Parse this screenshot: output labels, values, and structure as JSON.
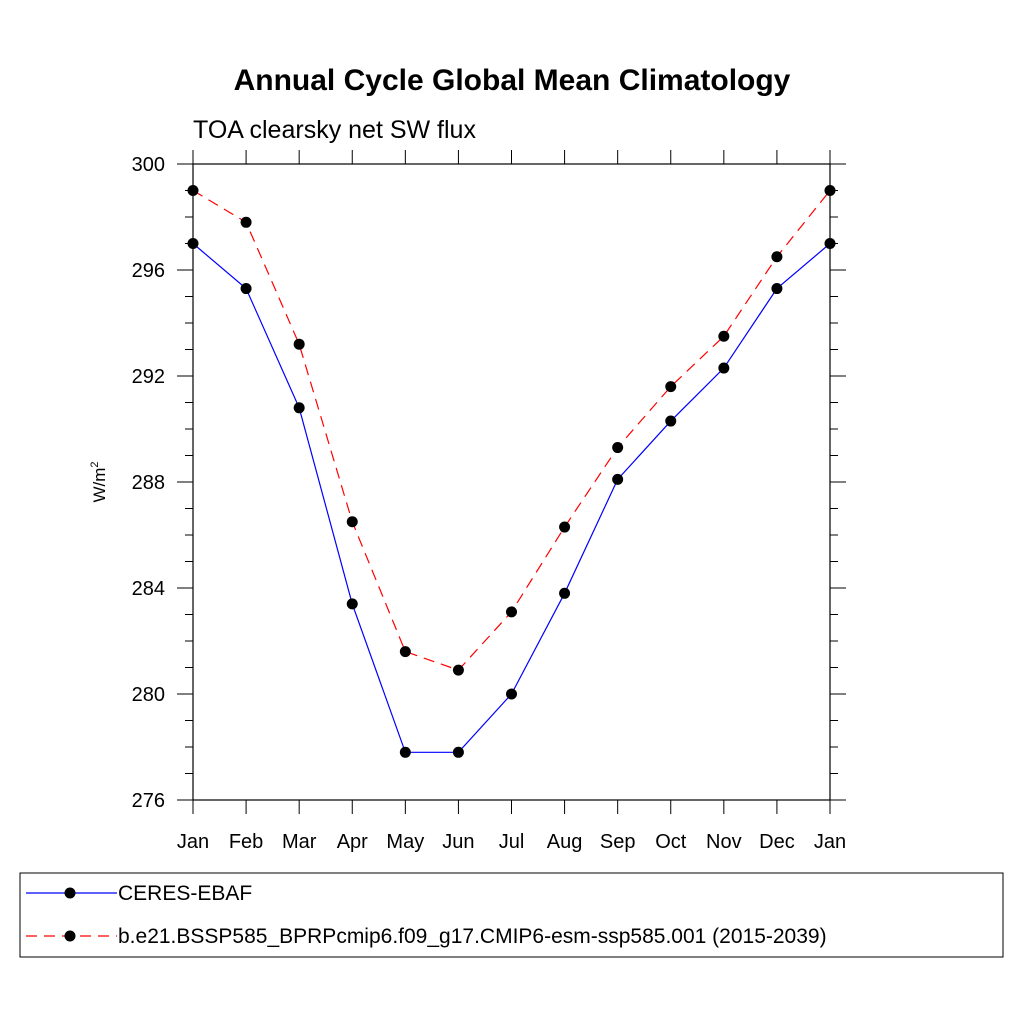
{
  "chart_data": {
    "type": "line",
    "title": "Annual Cycle Global Mean Climatology",
    "subtitle": "TOA clearsky net SW flux",
    "ylabel": "W/m",
    "ylabel_superscript": "2",
    "xlabel": "",
    "categories": [
      "Jan",
      "Feb",
      "Mar",
      "Apr",
      "May",
      "Jun",
      "Jul",
      "Aug",
      "Sep",
      "Oct",
      "Nov",
      "Dec",
      "Jan"
    ],
    "ylim": [
      276,
      300
    ],
    "yticks": [
      276,
      280,
      284,
      288,
      292,
      296,
      300
    ],
    "grid": false,
    "legend_position": "bottom",
    "series": [
      {
        "name": "CERES-EBAF",
        "color": "#0000ff",
        "line_style": "solid",
        "marker": "circle",
        "values": [
          297.0,
          295.3,
          290.8,
          283.4,
          277.8,
          277.8,
          280.0,
          283.8,
          288.1,
          290.3,
          292.3,
          295.3,
          297.0
        ]
      },
      {
        "name": "b.e21.BSSP585_BPRPcmip6.f09_g17.CMIP6-esm-ssp585.001 (2015-2039)",
        "color": "#ff0000",
        "line_style": "dashed",
        "marker": "circle",
        "values": [
          299.0,
          297.8,
          293.2,
          286.5,
          281.6,
          280.9,
          283.1,
          286.3,
          289.3,
          291.6,
          293.5,
          296.5,
          299.0
        ]
      }
    ]
  }
}
